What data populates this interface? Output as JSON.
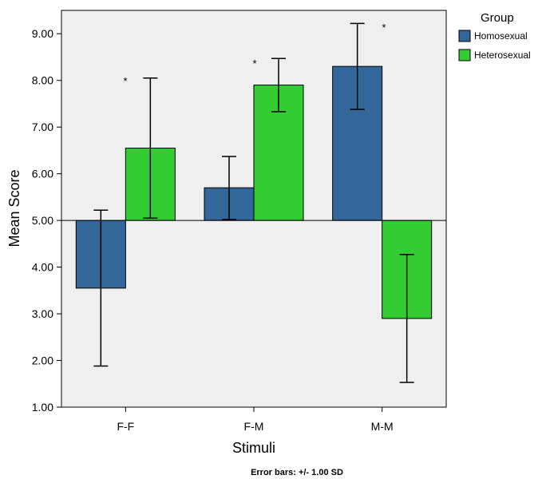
{
  "chart_data": {
    "type": "bar",
    "title": "",
    "xlabel": "Stimuli",
    "ylabel": "Mean Score",
    "categories": [
      "F-F",
      "F-M",
      "M-M"
    ],
    "baseline": 5.0,
    "ylim": [
      1.0,
      9.5
    ],
    "yticks": [
      "1.00",
      "2.00",
      "3.00",
      "4.00",
      "5.00",
      "6.00",
      "7.00",
      "8.00",
      "9.00"
    ],
    "ytick_values": [
      1,
      2,
      3,
      4,
      5,
      6,
      7,
      8,
      9
    ],
    "legend": {
      "title": "Group",
      "position": "right"
    },
    "series": [
      {
        "name": "Homosexual",
        "color": "#336699",
        "values": [
          3.55,
          5.7,
          8.3
        ],
        "err_low": [
          1.88,
          5.02,
          7.38
        ],
        "err_high": [
          5.22,
          6.37,
          9.22
        ]
      },
      {
        "name": "Heterosexual",
        "color": "#33CC33",
        "values": [
          6.55,
          7.9,
          2.9
        ],
        "err_low": [
          5.05,
          7.33,
          1.53
        ],
        "err_high": [
          8.05,
          8.47,
          4.27
        ]
      }
    ],
    "significance_marks": [
      {
        "category_index": 0,
        "label": "*"
      },
      {
        "category_index": 1,
        "label": "*"
      },
      {
        "category_index": 2,
        "label": "*"
      }
    ],
    "footnote": "Error bars: +/- 1.00 SD"
  }
}
